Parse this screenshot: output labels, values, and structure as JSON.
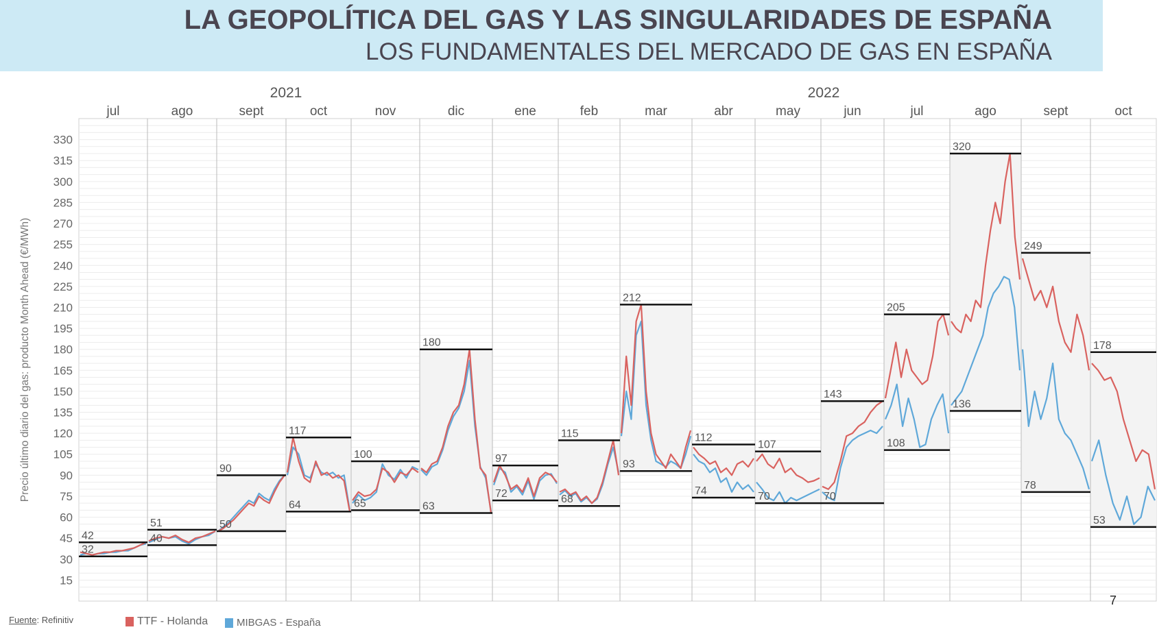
{
  "header": {
    "title": "LA GEOPOLÍTICA DEL GAS Y LAS SINGULARIDADES DE ESPAÑA",
    "subtitle": "LOS FUNDAMENTALES DEL MERCADO DE GAS EN ESPAÑA"
  },
  "footer": {
    "source_label": "Fuente",
    "source_value": ": Refinitiv",
    "page_number": "7"
  },
  "chart_data": {
    "type": "line",
    "ylabel": "Precio último diario del gas: producto Month Ahead (€/MWh)",
    "ylim": [
      0,
      345
    ],
    "yticks": [
      15,
      30,
      45,
      60,
      75,
      90,
      105,
      120,
      135,
      150,
      165,
      180,
      195,
      210,
      225,
      240,
      255,
      270,
      285,
      300,
      315,
      330
    ],
    "grid": true,
    "legend_position": "bottom-left",
    "years": [
      {
        "label": "2021",
        "month_index": 3
      },
      {
        "label": "2022",
        "month_index": 11
      }
    ],
    "months": [
      "jul",
      "ago",
      "sept",
      "oct",
      "nov",
      "dic",
      "ene",
      "feb",
      "mar",
      "abr",
      "may",
      "jun",
      "jul",
      "ago",
      "sept",
      "oct"
    ],
    "monthly_max": [
      42,
      51,
      90,
      117,
      100,
      180,
      97,
      115,
      212,
      112,
      107,
      143,
      205,
      320,
      249,
      178
    ],
    "monthly_min": [
      32,
      40,
      50,
      64,
      65,
      63,
      72,
      68,
      93,
      74,
      70,
      70,
      108,
      136,
      78,
      53
    ],
    "series": [
      {
        "name": "TTF - Holanda",
        "color": "#d9625f",
        "values": [
          [
            35,
            34,
            33,
            34,
            35,
            35,
            36,
            36,
            37,
            38,
            40,
            42
          ],
          [
            43,
            45,
            46,
            45,
            47,
            44,
            42,
            45,
            46,
            48,
            50
          ],
          [
            50,
            52,
            55,
            58,
            62,
            66,
            70,
            68,
            75,
            72,
            70,
            78,
            85,
            90
          ],
          [
            92,
            117,
            100,
            88,
            85,
            100,
            90,
            92,
            88,
            90,
            86,
            64
          ],
          [
            72,
            78,
            75,
            76,
            80,
            95,
            92,
            85,
            92,
            90,
            95,
            92
          ],
          [
            95,
            92,
            98,
            100,
            110,
            125,
            135,
            140,
            155,
            180,
            130,
            95,
            90,
            63
          ],
          [
            85,
            97,
            90,
            80,
            83,
            78,
            88,
            75,
            88,
            92,
            90,
            85
          ],
          [
            78,
            80,
            76,
            78,
            72,
            75,
            70,
            74,
            85,
            100,
            115,
            90
          ],
          [
            120,
            175,
            140,
            200,
            212,
            150,
            120,
            105,
            100,
            95,
            105,
            100,
            95,
            110,
            122
          ],
          [
            110,
            105,
            102,
            98,
            100,
            92,
            95,
            90,
            98,
            100,
            96,
            102
          ],
          [
            100,
            105,
            98,
            95,
            102,
            92,
            95,
            90,
            88,
            85,
            86,
            88
          ],
          [
            82,
            80,
            85,
            100,
            118,
            120,
            125,
            128,
            135,
            140,
            143
          ],
          [
            145,
            165,
            185,
            160,
            180,
            165,
            160,
            155,
            158,
            175,
            200,
            205,
            190
          ],
          [
            200,
            195,
            192,
            205,
            200,
            215,
            210,
            240,
            265,
            285,
            270,
            300,
            320,
            260,
            230
          ],
          [
            245,
            230,
            215,
            222,
            210,
            225,
            200,
            185,
            178,
            205,
            190,
            165
          ],
          [
            170,
            165,
            158,
            160,
            150,
            130,
            115,
            100,
            108,
            105,
            80
          ]
        ]
      },
      {
        "name": "MIBGAS - España",
        "color": "#5fa8d9",
        "values": [
          [
            33,
            34,
            33,
            34,
            34,
            35,
            35,
            36,
            36,
            38,
            40,
            41
          ],
          [
            42,
            44,
            46,
            45,
            46,
            43,
            41,
            44,
            46,
            47,
            50
          ],
          [
            50,
            53,
            56,
            60,
            64,
            68,
            72,
            70,
            77,
            74,
            72,
            80,
            86,
            90
          ],
          [
            90,
            110,
            105,
            90,
            88,
            98,
            92,
            90,
            92,
            88,
            90,
            65
          ],
          [
            70,
            76,
            72,
            74,
            78,
            98,
            90,
            87,
            94,
            88,
            96,
            94
          ],
          [
            94,
            90,
            96,
            98,
            108,
            122,
            132,
            138,
            150,
            172,
            125,
            96,
            88,
            64
          ],
          [
            83,
            95,
            92,
            78,
            82,
            76,
            86,
            73,
            86,
            90,
            91,
            84
          ],
          [
            76,
            79,
            75,
            77,
            71,
            74,
            70,
            73,
            83,
            98,
            110,
            92
          ],
          [
            118,
            150,
            130,
            190,
            200,
            140,
            115,
            100,
            98,
            96,
            100,
            98,
            95,
            105,
            118
          ],
          [
            105,
            100,
            98,
            92,
            95,
            85,
            88,
            78,
            85,
            80,
            83,
            78
          ],
          [
            85,
            80,
            74,
            72,
            78,
            70,
            74,
            72,
            74,
            76,
            78,
            80
          ],
          [
            78,
            74,
            72,
            95,
            110,
            115,
            118,
            120,
            122,
            120,
            125
          ],
          [
            130,
            140,
            155,
            125,
            145,
            130,
            110,
            112,
            130,
            140,
            148,
            120
          ],
          [
            140,
            145,
            150,
            160,
            170,
            180,
            190,
            210,
            220,
            225,
            232,
            230,
            210,
            165
          ],
          [
            180,
            125,
            150,
            130,
            145,
            170,
            130,
            120,
            115,
            105,
            95,
            80
          ],
          [
            100,
            115,
            90,
            70,
            58,
            75,
            55,
            60,
            82,
            72
          ]
        ]
      }
    ]
  }
}
